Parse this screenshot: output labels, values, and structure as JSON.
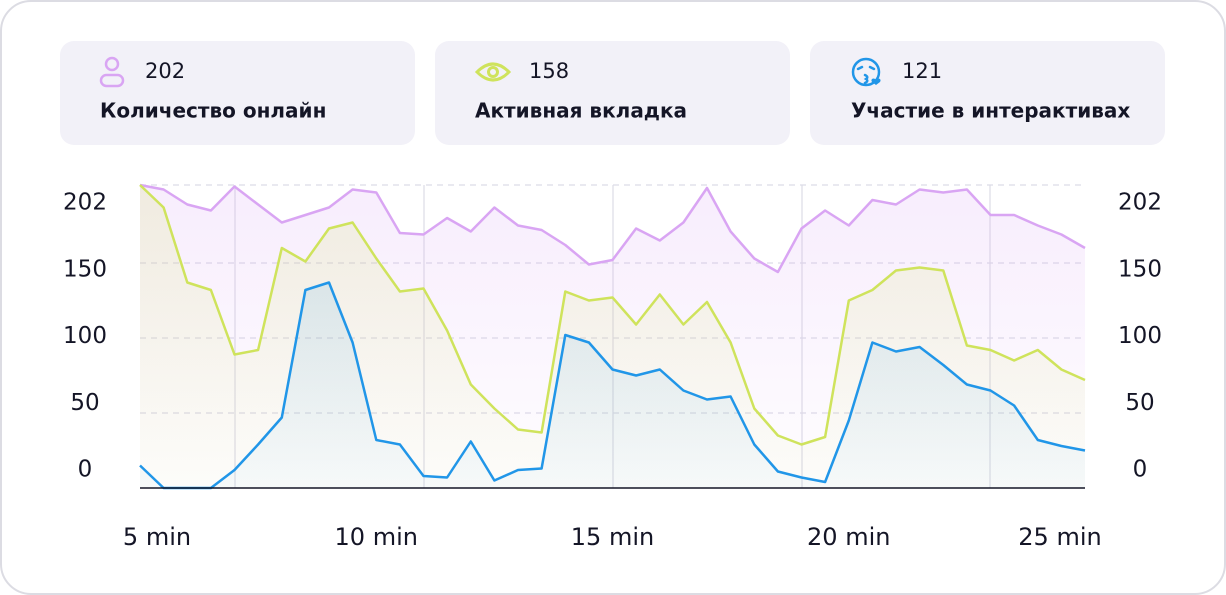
{
  "chart_data": {
    "type": "line",
    "x": [
      5,
      5.5,
      6,
      6.5,
      7,
      7.5,
      8,
      8.5,
      9,
      9.5,
      10,
      10.5,
      11,
      11.5,
      12,
      12.5,
      13,
      13.5,
      14,
      14.5,
      15,
      15.5,
      16,
      16.5,
      17,
      17.5,
      18,
      18.5,
      19,
      19.5,
      20,
      20.5,
      21,
      21.5,
      22,
      22.5,
      23,
      23.5,
      24,
      24.5,
      25
    ],
    "xlim": [
      5,
      25
    ],
    "xticks": [
      {
        "value": 5,
        "label": "5 min"
      },
      {
        "value": 10,
        "label": "10 min"
      },
      {
        "value": 15,
        "label": "15 min"
      },
      {
        "value": 20,
        "label": "20 min"
      },
      {
        "value": 25,
        "label": "25 min"
      }
    ],
    "ylim": [
      0,
      202
    ],
    "yticks": [
      0,
      50,
      100,
      150,
      202
    ],
    "series": [
      {
        "name": "Количество онлайн",
        "current": 202,
        "color": "#d9a5f3",
        "values": [
          202,
          199,
          189,
          185,
          201,
          189,
          177,
          182,
          187,
          199,
          197,
          170,
          169,
          180,
          171,
          187,
          175,
          172,
          162,
          149,
          152,
          173,
          165,
          177,
          200,
          171,
          153,
          144,
          173,
          185,
          175,
          192,
          189,
          199,
          197,
          199,
          182,
          182,
          175,
          169,
          160
        ]
      },
      {
        "name": "Активная вкладка",
        "current": 158,
        "color": "#cfe35c",
        "values": [
          202,
          187,
          137,
          132,
          89,
          92,
          160,
          151,
          173,
          177,
          153,
          131,
          133,
          105,
          69,
          53,
          39,
          37,
          131,
          125,
          127,
          109,
          129,
          109,
          124,
          97,
          53,
          35,
          29,
          34,
          125,
          132,
          145,
          147,
          145,
          95,
          92,
          85,
          92,
          79,
          72
        ]
      },
      {
        "name": "Участие в интерактивах",
        "current": 121,
        "color": "#2196e8",
        "values": [
          15,
          0,
          0,
          0,
          12,
          29,
          47,
          132,
          137,
          97,
          32,
          29,
          8,
          7,
          31,
          5,
          12,
          13,
          102,
          97,
          79,
          75,
          79,
          65,
          59,
          61,
          29,
          11,
          7,
          4,
          45,
          97,
          91,
          94,
          82,
          69,
          65,
          55,
          32,
          28,
          25
        ]
      }
    ]
  }
}
